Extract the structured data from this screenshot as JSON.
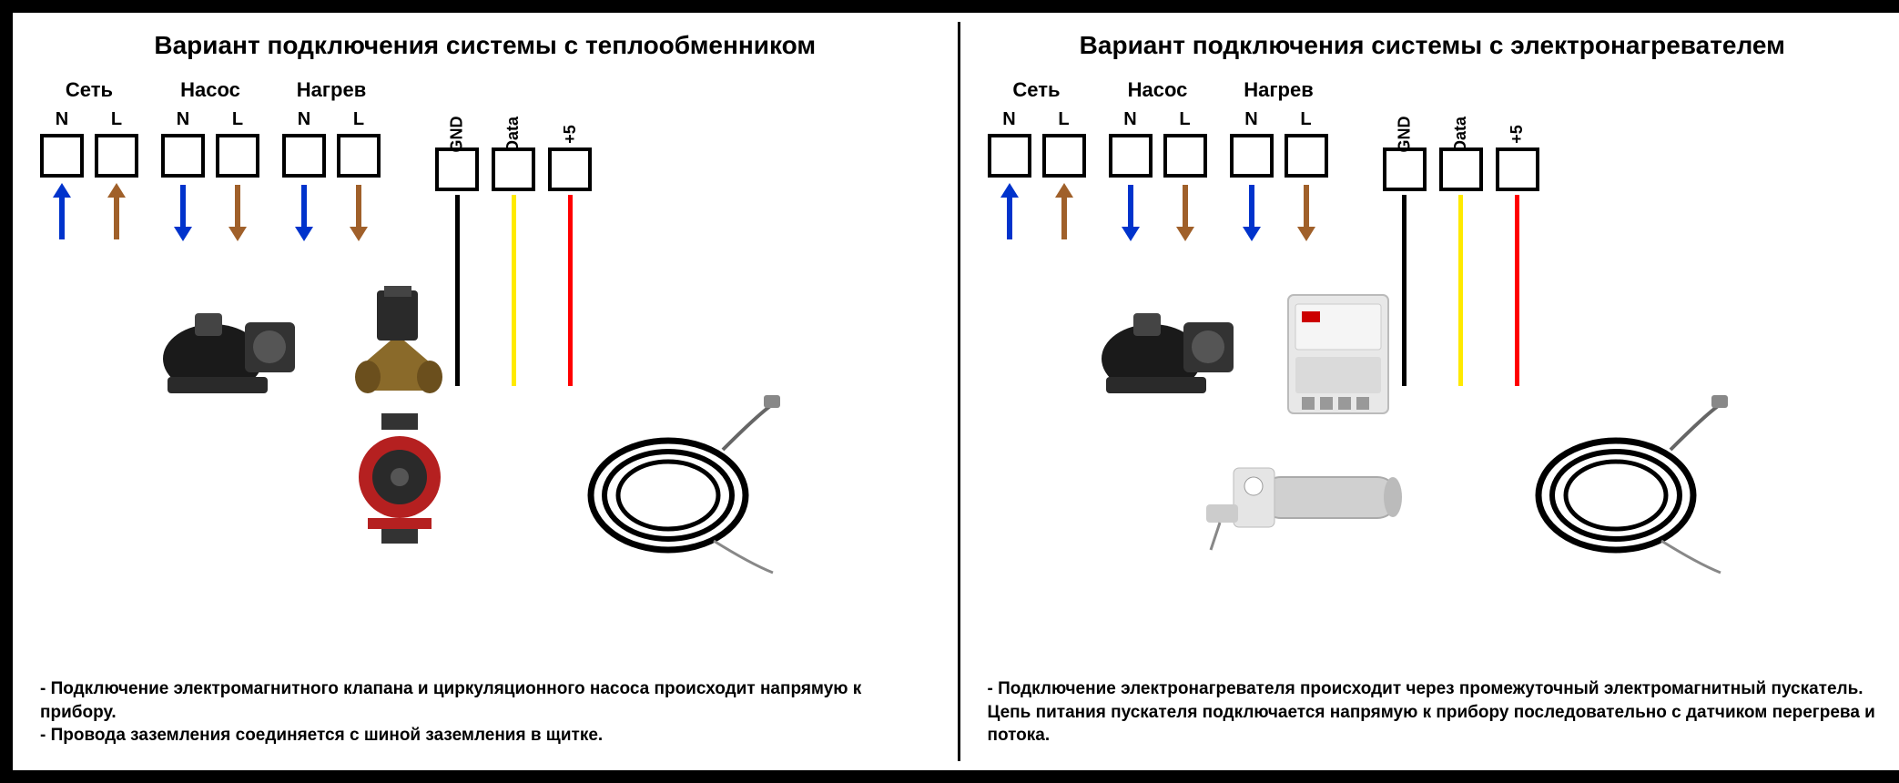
{
  "colors": {
    "blue": "#0033cc",
    "brown": "#a0602a",
    "black": "#000000",
    "yellow": "#ffea00",
    "red": "#ff0000",
    "pumpRed": "#b52020",
    "brass": "#8a6a2a",
    "grey": "#cfcfcf",
    "pumpDark": "#1a1a1a"
  },
  "panelA": {
    "title": "Вариант подключения системы с теплообменником",
    "groups": [
      {
        "label": "Сеть",
        "n": "N",
        "l": "L",
        "dir": "up"
      },
      {
        "label": "Насос",
        "n": "N",
        "l": "L",
        "dir": "down"
      },
      {
        "label": "Нагрев",
        "n": "N",
        "l": "L",
        "dir": "down"
      }
    ],
    "sensor": {
      "gnd": "GND",
      "data": "Data",
      "v5": "+5",
      "wireLen": 210
    },
    "notes": [
      " - Подключение электромагнитного клапана и циркуляционного насоса происходит напрямую к прибору.",
      " - Провода заземления соединяется с шиной заземления в щитке."
    ]
  },
  "panelB": {
    "title": "Вариант подключения системы с  электронагревателем",
    "groups": [
      {
        "label": "Сеть",
        "n": "N",
        "l": "L",
        "dir": "up"
      },
      {
        "label": "Насос",
        "n": "N",
        "l": "L",
        "dir": "down"
      },
      {
        "label": "Нагрев",
        "n": "N",
        "l": "L",
        "dir": "down"
      }
    ],
    "sensor": {
      "gnd": "GND",
      "data": "Data",
      "v5": "+5",
      "wireLen": 210
    },
    "notes": [
      " - Подключение электронагревателя происходит через промежуточный электромагнитный пускатель. Цепь питания пускателя подключается напрямую к прибору последовательно с датчиком перегрева и потока."
    ]
  }
}
